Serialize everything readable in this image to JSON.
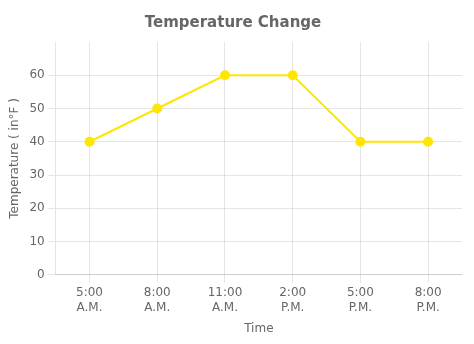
{
  "chart_data": {
    "type": "line",
    "title": "Temperature Change",
    "xlabel": "Time",
    "ylabel": "Temperature ( in°F )",
    "categories": [
      "5:00\nA.M.",
      "8:00\nA.M.",
      "11:00\nA.M.",
      "2:00\nP.M.",
      "5:00\nP.M.",
      "8:00\nP.M."
    ],
    "values": [
      40,
      50,
      60,
      60,
      40,
      40
    ],
    "color": "#FFE600",
    "marker": "circle",
    "ylim": [
      0,
      70
    ],
    "yticks": [
      0,
      10,
      20,
      30,
      40,
      50,
      60
    ],
    "grid": true
  }
}
